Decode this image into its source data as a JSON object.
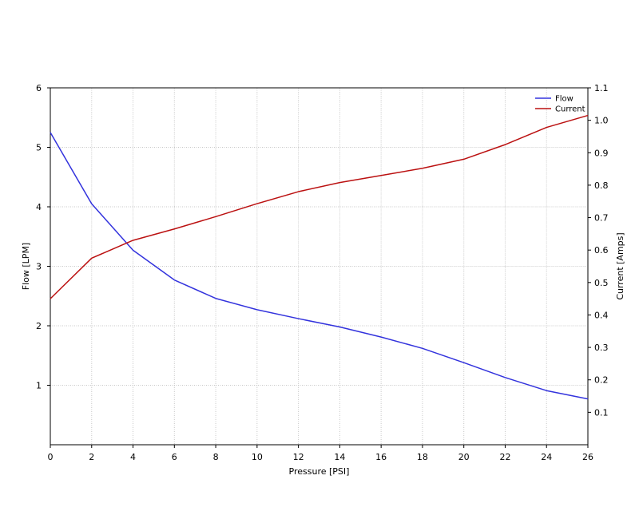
{
  "chart_data": {
    "type": "line",
    "x": [
      0,
      2,
      4,
      6,
      8,
      10,
      12,
      14,
      16,
      18,
      20,
      22,
      24,
      26
    ],
    "xlabel": "Pressure [PSI]",
    "ylabel_left": "Flow [LPM]",
    "ylabel_right": "Current [Amps]",
    "xlim": [
      0,
      26
    ],
    "ylim_left": [
      0,
      6
    ],
    "ylim_right": [
      0,
      1.1
    ],
    "x_ticks": [
      0,
      2,
      4,
      6,
      8,
      10,
      12,
      14,
      16,
      18,
      20,
      22,
      24,
      26
    ],
    "y_ticks_left": [
      1,
      2,
      3,
      4,
      5,
      6
    ],
    "y_ticks_right": [
      "0.1",
      "0.2",
      "0.3",
      "0.4",
      "0.5",
      "0.6",
      "0.7",
      "0.8",
      "0.9",
      "1.0",
      "1.1"
    ],
    "grid": true,
    "legend_position": "top-right",
    "series": [
      {
        "name": "Flow",
        "axis": "left",
        "color": "#3333dd",
        "values": [
          5.25,
          4.05,
          3.27,
          2.77,
          2.46,
          2.27,
          2.12,
          1.98,
          1.81,
          1.62,
          1.38,
          1.13,
          0.91,
          0.77
        ]
      },
      {
        "name": "Current",
        "axis": "right",
        "color": "#bb1111",
        "values": [
          0.45,
          0.575,
          0.63,
          0.665,
          0.703,
          0.743,
          0.78,
          0.808,
          0.83,
          0.852,
          0.88,
          0.925,
          0.978,
          1.015
        ]
      }
    ]
  }
}
